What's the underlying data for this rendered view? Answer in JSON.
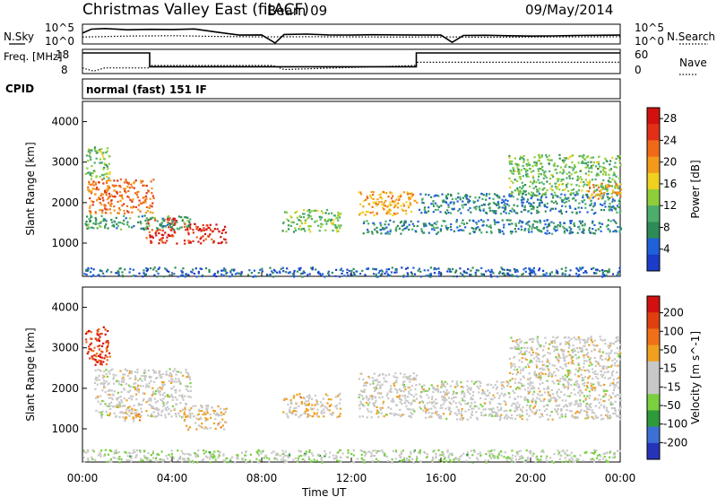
{
  "header": {
    "title": "Christmas Valley East (fitACF)",
    "beam": "Beam 09",
    "date": "09/May/2014",
    "mode": "normal (fast) 151 IF",
    "cpid_label": "CPID"
  },
  "colors": {
    "power_scale": [
      "#1a3cc8",
      "#2060d8",
      "#2e8b57",
      "#4cae6c",
      "#8fce3a",
      "#f0d020",
      "#f39a1c",
      "#ef6a18",
      "#e23018",
      "#d21010"
    ],
    "velocity_scale": [
      "#2433b8",
      "#3c70d4",
      "#2e9a3a",
      "#7ad040",
      "#c8c8c8",
      "#c8c8c8",
      "#f0a020",
      "#ef7018",
      "#e04010",
      "#d21010"
    ]
  },
  "chart_data": [
    {
      "type": "line",
      "name": "nsky-nsearch",
      "left_label": "N.Sky",
      "right_label": "N.Search",
      "left_ticks": [
        "10^5",
        "10^0"
      ],
      "right_ticks": [
        "10^5",
        "10^0"
      ],
      "series": [
        {
          "name": "N.Sky",
          "style": "solid",
          "x": [
            0,
            0.4,
            1,
            2,
            3,
            4,
            5,
            6,
            7,
            8,
            8.6,
            9,
            10,
            11,
            12,
            13,
            14,
            15,
            16,
            16.5,
            17,
            18,
            19,
            20,
            21,
            22,
            23,
            24
          ],
          "y": [
            0.55,
            0.75,
            0.78,
            0.72,
            0.74,
            0.73,
            0.76,
            0.6,
            0.45,
            0.46,
            0.05,
            0.48,
            0.5,
            0.46,
            0.45,
            0.47,
            0.46,
            0.45,
            0.45,
            0.08,
            0.43,
            0.44,
            0.42,
            0.4,
            0.41,
            0.43,
            0.44,
            0.45
          ]
        },
        {
          "name": "N.Search",
          "style": "dotted",
          "x": [
            0,
            2,
            4,
            6,
            8,
            10,
            12,
            14,
            16,
            18,
            20,
            22,
            24
          ],
          "y": [
            0.35,
            0.4,
            0.42,
            0.38,
            0.36,
            0.37,
            0.36,
            0.35,
            0.36,
            0.34,
            0.35,
            0.36,
            0.37
          ]
        }
      ]
    },
    {
      "type": "line",
      "name": "freq-nave",
      "left_label": "Freq. [MHz]",
      "right_label": "Nave",
      "left_ticks": [
        "18",
        "8"
      ],
      "right_ticks": [
        "60",
        "0"
      ],
      "series": [
        {
          "name": "Freq.",
          "style": "solid",
          "x": [
            0,
            3.0,
            3.0,
            14.9,
            14.9,
            24
          ],
          "y": [
            16.5,
            16.5,
            10.8,
            10.8,
            16.5,
            16.5
          ]
        },
        {
          "name": "Nave",
          "style": "dotted",
          "x": [
            0,
            0.5,
            1,
            3,
            3.0,
            8.5,
            9,
            14.9,
            14.9,
            24
          ],
          "y": [
            14,
            6,
            14,
            14,
            20,
            20,
            10,
            20,
            28,
            28
          ]
        }
      ]
    },
    {
      "type": "heatmap",
      "name": "power",
      "ylabel": "Slant Range [km]",
      "xlabel": "Time UT",
      "x_ticks": [
        "00:00",
        "04:00",
        "08:00",
        "12:00",
        "16:00",
        "20:00",
        "00:00"
      ],
      "y_ticks": [
        "1000",
        "2000",
        "3000",
        "4000"
      ],
      "xlim": [
        0,
        24
      ],
      "ylim": [
        180,
        4500
      ],
      "colorbar": {
        "label": "Power [dB]",
        "ticks": [
          "4",
          "8",
          "12",
          "16",
          "20",
          "24",
          "28"
        ],
        "range": [
          0,
          30
        ]
      },
      "regions": [
        {
          "x": [
            0.2,
            3.2
          ],
          "y": [
            1750,
            2600
          ],
          "value": 22
        },
        {
          "x": [
            0.1,
            1.2
          ],
          "y": [
            2600,
            3400
          ],
          "value": 12
        },
        {
          "x": [
            2.8,
            4.2
          ],
          "y": [
            1000,
            1650
          ],
          "value": 26
        },
        {
          "x": [
            4.5,
            6.4
          ],
          "y": [
            1000,
            1500
          ],
          "value": 27
        },
        {
          "x": [
            0.1,
            4.8
          ],
          "y": [
            1350,
            1700
          ],
          "value": 9
        },
        {
          "x": [
            8.9,
            11.5
          ],
          "y": [
            1300,
            1850
          ],
          "value": 12
        },
        {
          "x": [
            12.3,
            14.9
          ],
          "y": [
            1700,
            2300
          ],
          "value": 19
        },
        {
          "x": [
            12.5,
            24.0
          ],
          "y": [
            1250,
            1600
          ],
          "value": 7
        },
        {
          "x": [
            15.0,
            24.0
          ],
          "y": [
            1750,
            2250
          ],
          "value": 7
        },
        {
          "x": [
            19.0,
            24.0
          ],
          "y": [
            2200,
            3200
          ],
          "value": 12
        },
        {
          "x": [
            22.5,
            24.0
          ],
          "y": [
            2100,
            2500
          ],
          "value": 20
        },
        {
          "x": [
            0.0,
            24.0
          ],
          "y": [
            190,
            420
          ],
          "value": 5
        }
      ]
    },
    {
      "type": "heatmap",
      "name": "velocity",
      "ylabel": "Slant Range [km]",
      "xlabel": "Time UT",
      "x_ticks": [
        "00:00",
        "04:00",
        "08:00",
        "12:00",
        "16:00",
        "20:00",
        "00:00"
      ],
      "y_ticks": [
        "1000",
        "2000",
        "3000",
        "4000"
      ],
      "xlim": [
        0,
        24
      ],
      "ylim": [
        180,
        4500
      ],
      "colorbar": {
        "label": "Velocity [m s^-1]",
        "ticks": [
          "200",
          "100",
          "50",
          "15",
          "-15",
          "-50",
          "-100",
          "-200"
        ],
        "range": [
          -250,
          250
        ]
      },
      "regions": [
        {
          "x": [
            0.1,
            1.2
          ],
          "y": [
            2600,
            3600
          ],
          "value": 180
        },
        {
          "x": [
            0.5,
            4.8
          ],
          "y": [
            1300,
            2500
          ],
          "value": 0
        },
        {
          "x": [
            1.8,
            2.6
          ],
          "y": [
            1200,
            1600
          ],
          "value": 60
        },
        {
          "x": [
            4.5,
            6.4
          ],
          "y": [
            1000,
            1600
          ],
          "value": 40
        },
        {
          "x": [
            8.9,
            11.5
          ],
          "y": [
            1300,
            1900
          ],
          "value": 40
        },
        {
          "x": [
            12.3,
            14.9
          ],
          "y": [
            1300,
            2400
          ],
          "value": 0
        },
        {
          "x": [
            15.0,
            24.0
          ],
          "y": [
            1250,
            2200
          ],
          "value": 0
        },
        {
          "x": [
            19.0,
            24.0
          ],
          "y": [
            2200,
            3300
          ],
          "value": 0
        },
        {
          "x": [
            0.0,
            24.0
          ],
          "y": [
            190,
            500
          ],
          "value": -40
        }
      ]
    }
  ]
}
